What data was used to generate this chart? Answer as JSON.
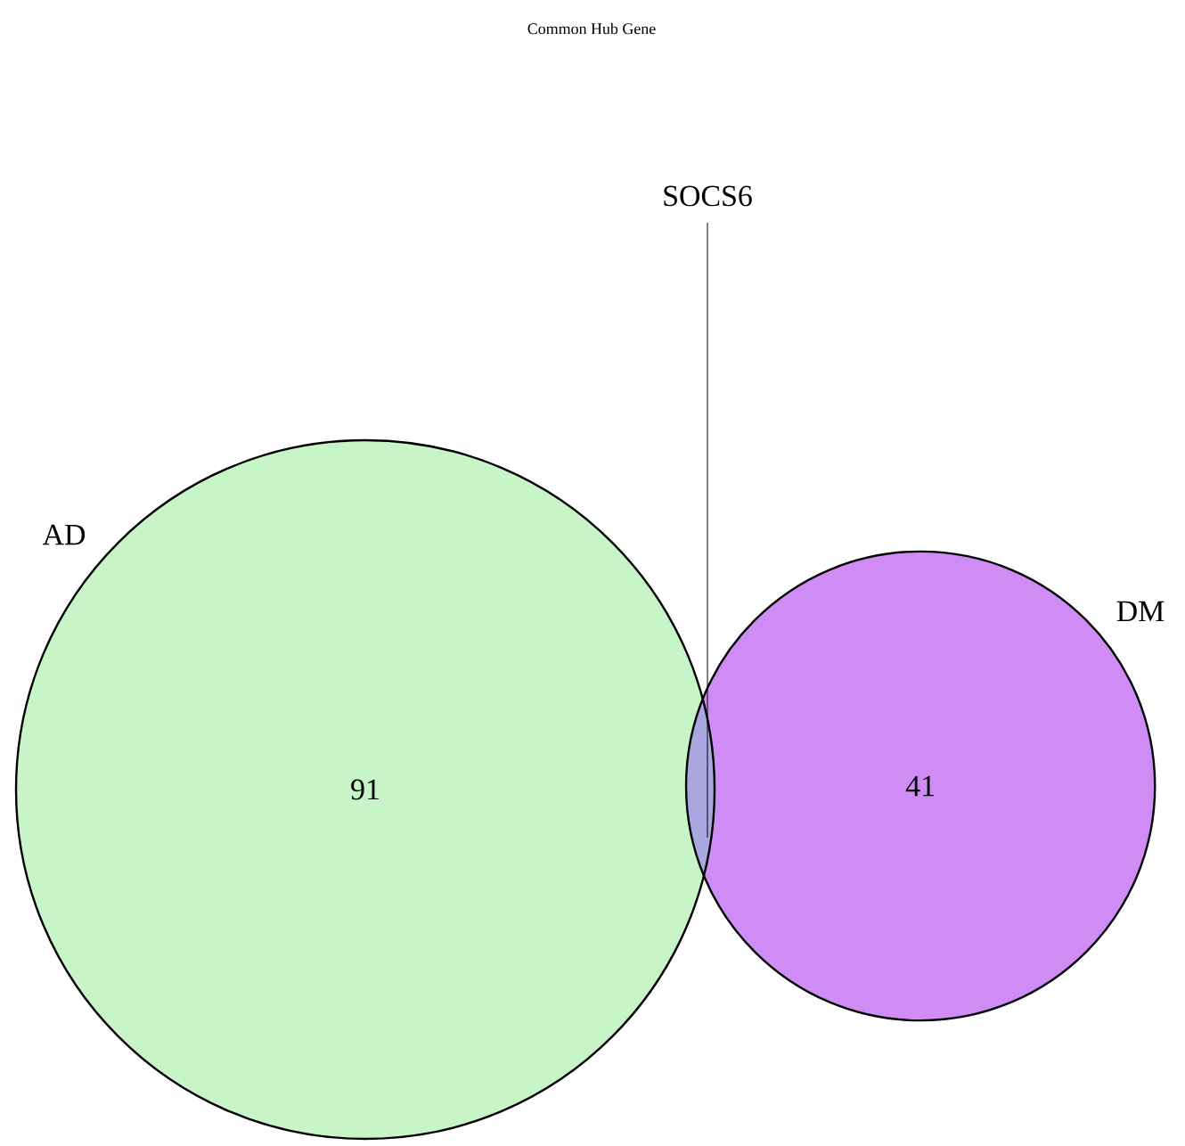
{
  "chart_data": {
    "type": "other",
    "title": "Common Hub Gene",
    "categories": [
      "AD",
      "DM"
    ],
    "values": [
      91,
      41
    ],
    "colors": [
      "#c8f5c8",
      "#d08cf5"
    ],
    "data_labels": true,
    "annotations": [
      "SOCS6"
    ]
  }
}
